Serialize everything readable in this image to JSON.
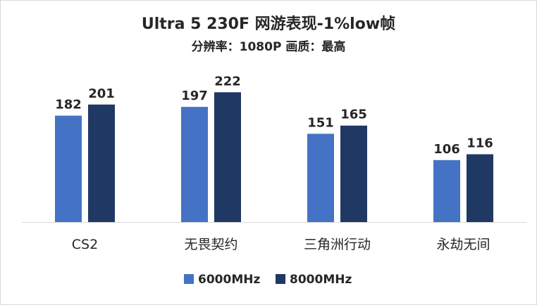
{
  "chart_data": {
    "type": "bar",
    "title": "Ultra 5 230F 网游表现-1%low帧",
    "subtitle": "分辨率：1080P 画质：最高",
    "categories": [
      "CS2",
      "无畏契约",
      "三角洲行动",
      "永劫无间"
    ],
    "series": [
      {
        "name": "6000MHz",
        "color": "#4472c4",
        "values": [
          182,
          197,
          151,
          106
        ]
      },
      {
        "name": "8000MHz",
        "color": "#203864",
        "values": [
          201,
          222,
          165,
          116
        ]
      }
    ],
    "ylim": [
      0,
      240
    ],
    "grid": false,
    "legend_position": "bottom",
    "axis_color": "#d9d9d9"
  }
}
